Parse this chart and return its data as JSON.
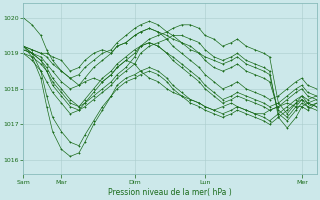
{
  "background_color": "#cce8ea",
  "line_color": "#1a6b1a",
  "marker": "+",
  "ylabel_ticks": [
    1016,
    1017,
    1018,
    1019,
    1020
  ],
  "xlabel": "Pression niveau de la mer( hPa )",
  "xtick_labels": [
    "Sam",
    "Mar",
    "Dim",
    "Lun",
    "Mer"
  ],
  "xtick_positions": [
    0,
    0.13,
    0.38,
    0.62,
    0.95
  ],
  "ylim": [
    1015.6,
    1020.4
  ],
  "xlim": [
    0.0,
    1.0
  ],
  "grid_color": "#aacccc",
  "spine_color": "#88bbbb",
  "figsize": [
    3.2,
    2.0
  ],
  "dpi": 100,
  "series": [
    {
      "x": [
        0.0,
        0.03,
        0.06,
        0.08,
        0.1,
        0.13,
        0.16,
        0.19,
        0.21,
        0.24,
        0.27,
        0.3,
        0.32,
        0.35,
        0.38,
        0.4,
        0.43,
        0.46,
        0.49,
        0.51,
        0.54,
        0.57,
        0.6,
        0.62,
        0.65,
        0.68,
        0.71,
        0.73,
        0.76,
        0.79,
        0.82,
        0.84,
        0.87,
        0.9,
        0.93,
        0.95,
        0.97,
        1.0
      ],
      "y": [
        1020.0,
        1019.8,
        1019.5,
        1019.1,
        1018.8,
        1018.5,
        1018.3,
        1018.1,
        1018.2,
        1018.3,
        1018.2,
        1018.4,
        1018.6,
        1018.8,
        1018.7,
        1018.5,
        1018.3,
        1018.2,
        1018.0,
        1017.9,
        1017.8,
        1017.7,
        1017.6,
        1017.5,
        1017.4,
        1017.5,
        1017.6,
        1017.5,
        1017.4,
        1017.3,
        1017.3,
        1017.4,
        1017.5,
        1017.6,
        1017.5,
        1017.5,
        1017.6,
        1017.5
      ]
    },
    {
      "x": [
        0.0,
        0.03,
        0.06,
        0.08,
        0.1,
        0.13,
        0.16,
        0.19,
        0.21,
        0.24,
        0.27,
        0.3,
        0.32,
        0.35,
        0.38,
        0.4,
        0.43,
        0.46,
        0.49,
        0.51,
        0.54,
        0.57,
        0.6,
        0.62,
        0.65,
        0.68,
        0.71,
        0.73,
        0.76,
        0.79,
        0.82,
        0.84,
        0.87,
        0.9,
        0.93,
        0.95,
        0.97,
        1.0
      ],
      "y": [
        1019.2,
        1019.1,
        1019.0,
        1019.0,
        1018.9,
        1018.8,
        1018.5,
        1018.6,
        1018.8,
        1019.0,
        1019.1,
        1019.0,
        1019.2,
        1019.3,
        1019.5,
        1019.6,
        1019.7,
        1019.6,
        1019.5,
        1019.4,
        1019.3,
        1019.2,
        1019.0,
        1018.9,
        1018.8,
        1018.7,
        1018.8,
        1018.9,
        1018.7,
        1018.6,
        1018.5,
        1018.4,
        1017.3,
        1017.1,
        1017.4,
        1017.6,
        1017.5,
        1017.6
      ]
    },
    {
      "x": [
        0.0,
        0.03,
        0.06,
        0.08,
        0.1,
        0.13,
        0.16,
        0.19,
        0.21,
        0.24,
        0.27,
        0.3,
        0.32,
        0.35,
        0.38,
        0.4,
        0.43,
        0.46,
        0.49,
        0.51,
        0.54,
        0.57,
        0.6,
        0.62,
        0.65,
        0.68,
        0.71,
        0.73,
        0.76,
        0.79,
        0.82,
        0.84,
        0.87,
        0.9,
        0.93,
        0.95,
        0.97,
        1.0
      ],
      "y": [
        1019.2,
        1019.0,
        1018.5,
        1017.8,
        1017.2,
        1016.8,
        1016.5,
        1016.4,
        1016.7,
        1017.1,
        1017.5,
        1017.8,
        1018.1,
        1018.3,
        1018.4,
        1018.5,
        1018.6,
        1018.5,
        1018.3,
        1018.1,
        1017.9,
        1017.7,
        1017.6,
        1017.5,
        1017.4,
        1017.3,
        1017.4,
        1017.5,
        1017.4,
        1017.3,
        1017.2,
        1017.1,
        1017.3,
        1017.5,
        1017.7,
        1017.8,
        1017.6,
        1017.5
      ]
    },
    {
      "x": [
        0.0,
        0.03,
        0.06,
        0.08,
        0.1,
        0.13,
        0.16,
        0.19,
        0.21,
        0.24,
        0.27,
        0.3,
        0.32,
        0.35,
        0.38,
        0.4,
        0.43,
        0.46,
        0.49,
        0.51,
        0.54,
        0.57,
        0.6,
        0.62,
        0.65,
        0.68,
        0.71,
        0.73,
        0.76,
        0.79,
        0.82,
        0.84,
        0.87,
        0.9,
        0.93,
        0.95,
        0.97,
        1.0
      ],
      "y": [
        1019.2,
        1018.9,
        1018.3,
        1017.5,
        1016.8,
        1016.3,
        1016.1,
        1016.2,
        1016.5,
        1017.0,
        1017.4,
        1017.8,
        1018.0,
        1018.2,
        1018.3,
        1018.4,
        1018.5,
        1018.4,
        1018.2,
        1018.0,
        1017.8,
        1017.6,
        1017.5,
        1017.4,
        1017.3,
        1017.2,
        1017.3,
        1017.4,
        1017.3,
        1017.2,
        1017.1,
        1017.0,
        1017.2,
        1017.4,
        1017.6,
        1017.7,
        1017.5,
        1017.4
      ]
    },
    {
      "x": [
        0.0,
        0.03,
        0.06,
        0.08,
        0.1,
        0.13,
        0.16,
        0.19,
        0.21,
        0.24,
        0.27,
        0.3,
        0.32,
        0.35,
        0.38,
        0.4,
        0.43,
        0.46,
        0.49,
        0.51,
        0.54,
        0.57,
        0.6,
        0.62,
        0.65,
        0.68,
        0.71,
        0.73,
        0.76,
        0.79,
        0.82,
        0.84,
        0.87,
        0.9,
        0.93,
        0.95,
        0.97,
        1.0
      ],
      "y": [
        1019.2,
        1019.0,
        1018.8,
        1018.5,
        1018.1,
        1017.8,
        1017.5,
        1017.4,
        1017.5,
        1017.7,
        1017.9,
        1018.1,
        1018.3,
        1018.5,
        1018.7,
        1019.0,
        1019.2,
        1019.3,
        1019.4,
        1019.5,
        1019.5,
        1019.4,
        1019.3,
        1019.1,
        1018.9,
        1018.8,
        1018.9,
        1019.0,
        1018.8,
        1018.7,
        1018.6,
        1018.5,
        1017.2,
        1016.9,
        1017.2,
        1017.5,
        1017.4,
        1017.6
      ]
    },
    {
      "x": [
        0.0,
        0.03,
        0.06,
        0.08,
        0.1,
        0.13,
        0.16,
        0.19,
        0.21,
        0.24,
        0.27,
        0.3,
        0.32,
        0.35,
        0.38,
        0.4,
        0.43,
        0.46,
        0.49,
        0.51,
        0.54,
        0.57,
        0.6,
        0.62,
        0.65,
        0.68,
        0.71,
        0.73,
        0.76,
        0.79,
        0.82,
        0.84,
        0.87,
        0.9,
        0.93,
        0.95,
        0.97,
        1.0
      ],
      "y": [
        1019.2,
        1019.1,
        1019.0,
        1018.9,
        1018.7,
        1018.5,
        1018.3,
        1018.4,
        1018.6,
        1018.8,
        1019.0,
        1019.1,
        1019.3,
        1019.5,
        1019.7,
        1019.8,
        1019.9,
        1019.8,
        1019.6,
        1019.5,
        1019.3,
        1019.1,
        1019.0,
        1018.8,
        1018.6,
        1018.5,
        1018.6,
        1018.7,
        1018.5,
        1018.4,
        1018.3,
        1018.2,
        1017.4,
        1017.2,
        1017.5,
        1017.7,
        1017.6,
        1017.7
      ]
    },
    {
      "x": [
        0.0,
        0.03,
        0.06,
        0.08,
        0.1,
        0.13,
        0.16,
        0.19,
        0.21,
        0.24,
        0.27,
        0.3,
        0.32,
        0.35,
        0.38,
        0.4,
        0.43,
        0.46,
        0.49,
        0.51,
        0.54,
        0.57,
        0.6,
        0.62,
        0.65,
        0.68,
        0.71,
        0.73,
        0.76,
        0.79,
        0.82,
        0.84,
        0.87,
        0.9,
        0.93,
        0.95,
        0.97,
        1.0
      ],
      "y": [
        1019.1,
        1019.0,
        1018.8,
        1018.6,
        1018.3,
        1018.0,
        1017.7,
        1017.5,
        1017.6,
        1017.8,
        1018.0,
        1018.2,
        1018.4,
        1018.6,
        1018.9,
        1019.2,
        1019.4,
        1019.5,
        1019.6,
        1019.7,
        1019.8,
        1019.8,
        1019.7,
        1019.5,
        1019.4,
        1019.2,
        1019.3,
        1019.4,
        1019.2,
        1019.1,
        1019.0,
        1018.9,
        1017.6,
        1017.3,
        1017.6,
        1017.8,
        1017.7,
        1017.8
      ]
    },
    {
      "x": [
        0.0,
        0.03,
        0.06,
        0.08,
        0.1,
        0.13,
        0.16,
        0.19,
        0.21,
        0.24,
        0.27,
        0.3,
        0.32,
        0.35,
        0.38,
        0.4,
        0.43,
        0.46,
        0.49,
        0.51,
        0.54,
        0.57,
        0.6,
        0.62,
        0.65,
        0.68,
        0.71,
        0.73,
        0.76,
        0.79,
        0.82,
        0.84,
        0.87,
        0.9,
        0.93,
        0.95,
        0.97,
        1.0
      ],
      "y": [
        1019.0,
        1018.8,
        1018.5,
        1018.2,
        1017.9,
        1017.6,
        1017.3,
        1017.4,
        1017.6,
        1017.9,
        1018.2,
        1018.4,
        1018.6,
        1018.8,
        1019.0,
        1019.2,
        1019.3,
        1019.2,
        1019.0,
        1018.8,
        1018.6,
        1018.4,
        1018.2,
        1018.0,
        1017.8,
        1017.6,
        1017.7,
        1017.8,
        1017.7,
        1017.6,
        1017.5,
        1017.4,
        1017.5,
        1017.7,
        1017.9,
        1018.0,
        1017.8,
        1017.7
      ]
    },
    {
      "x": [
        0.0,
        0.03,
        0.06,
        0.08,
        0.1,
        0.13,
        0.16,
        0.19,
        0.21,
        0.24,
        0.27,
        0.3,
        0.32,
        0.35,
        0.38,
        0.4,
        0.43,
        0.46,
        0.49,
        0.51,
        0.54,
        0.57,
        0.6,
        0.62,
        0.65,
        0.68,
        0.71,
        0.73,
        0.76,
        0.79,
        0.82,
        0.84,
        0.87,
        0.9,
        0.93,
        0.95,
        0.97,
        1.0
      ],
      "y": [
        1019.0,
        1018.9,
        1018.7,
        1018.5,
        1018.2,
        1017.9,
        1017.6,
        1017.5,
        1017.7,
        1018.0,
        1018.3,
        1018.5,
        1018.7,
        1018.9,
        1019.1,
        1019.2,
        1019.3,
        1019.2,
        1019.0,
        1018.9,
        1018.7,
        1018.5,
        1018.3,
        1018.1,
        1017.9,
        1017.7,
        1017.8,
        1017.9,
        1017.8,
        1017.7,
        1017.6,
        1017.5,
        1017.6,
        1017.8,
        1018.0,
        1018.1,
        1017.9,
        1017.8
      ]
    },
    {
      "x": [
        0.0,
        0.03,
        0.06,
        0.08,
        0.1,
        0.13,
        0.16,
        0.19,
        0.21,
        0.24,
        0.27,
        0.3,
        0.32,
        0.35,
        0.38,
        0.4,
        0.43,
        0.46,
        0.49,
        0.51,
        0.54,
        0.57,
        0.6,
        0.62,
        0.65,
        0.68,
        0.71,
        0.73,
        0.76,
        0.79,
        0.82,
        0.84,
        0.87,
        0.9,
        0.93,
        0.95,
        0.97,
        1.0
      ],
      "y": [
        1019.1,
        1019.0,
        1018.9,
        1018.7,
        1018.5,
        1018.2,
        1018.0,
        1018.1,
        1018.3,
        1018.6,
        1018.8,
        1019.0,
        1019.2,
        1019.3,
        1019.5,
        1019.6,
        1019.7,
        1019.6,
        1019.4,
        1019.2,
        1019.0,
        1018.8,
        1018.6,
        1018.4,
        1018.2,
        1018.0,
        1018.1,
        1018.2,
        1018.0,
        1017.9,
        1017.8,
        1017.7,
        1017.8,
        1018.0,
        1018.2,
        1018.3,
        1018.1,
        1018.0
      ]
    }
  ]
}
